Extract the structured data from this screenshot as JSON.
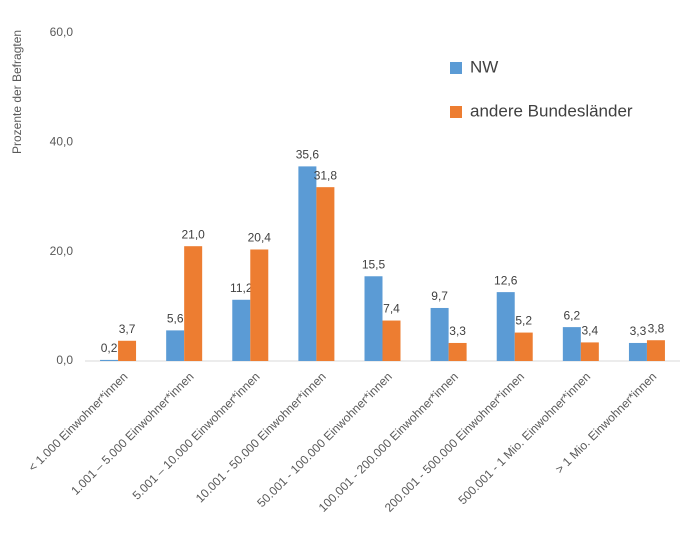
{
  "chart_data": {
    "type": "bar",
    "y_label": "Prozente der Befragten",
    "categories": [
      "< 1.000 Einwohner*innen",
      "1.001 – 5.000 Einwohner*innen",
      "5.001 – 10.000 Einwohner*innen",
      "10.001 - 50.000 Einwohner*innen",
      "50.001 - 100.000 Einwohner*innen",
      "100.001 - 200.000 Einwohner*innen",
      "200.001 - 500.000 Einwohner*innen",
      "500.001 - 1 Mio. Einwohner*innen",
      "> 1 Mio. Einwohner*innen"
    ],
    "series": [
      {
        "name": "NW",
        "color": "#5b9bd5",
        "values": [
          0.2,
          5.6,
          11.2,
          35.6,
          15.5,
          9.7,
          12.6,
          6.2,
          3.3
        ],
        "value_labels": [
          "0,2",
          "5,6",
          "11,2",
          "35,6",
          "15,5",
          "9,7",
          "12,6",
          "6,2",
          "3,3"
        ]
      },
      {
        "name": "andere Bundesländer",
        "color": "#ed7d31",
        "values": [
          3.7,
          21.0,
          20.4,
          31.8,
          7.4,
          3.3,
          5.2,
          3.4,
          3.8
        ],
        "value_labels": [
          "3,7",
          "21,0",
          "20,4",
          "31,8",
          "7,4",
          "3,3",
          "5,2",
          "3,4",
          "3,8"
        ]
      }
    ],
    "ylim": [
      0,
      60
    ],
    "yticks": [
      {
        "value": 0,
        "label": "0,0"
      },
      {
        "value": 20,
        "label": "20,0"
      },
      {
        "value": 40,
        "label": "40,0"
      },
      {
        "value": 60,
        "label": "60,0"
      }
    ],
    "grid": false,
    "legend": "upper right"
  }
}
